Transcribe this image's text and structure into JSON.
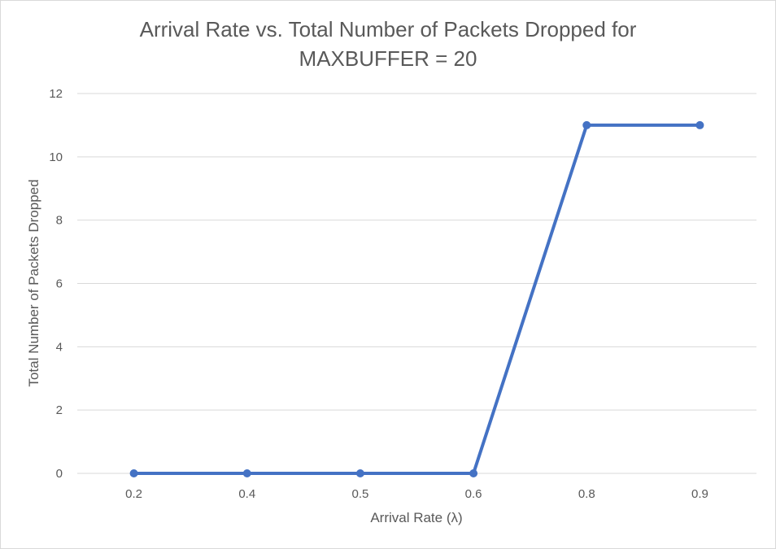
{
  "chart_data": {
    "type": "line",
    "title_line1": "Arrival Rate vs. Total Number of Packets Dropped for",
    "title_line2": "MAXBUFFER = 20",
    "xlabel": "Arrival Rate (λ)",
    "ylabel": "Total Number of Packets Dropped",
    "categories": [
      "0.2",
      "0.4",
      "0.5",
      "0.6",
      "0.8",
      "0.9"
    ],
    "values": [
      0,
      0,
      0,
      0,
      11,
      11
    ],
    "ylim": [
      0,
      12
    ],
    "yticks": [
      "0",
      "2",
      "4",
      "6",
      "8",
      "10",
      "12"
    ],
    "grid": "horizontal",
    "legend": "none",
    "color": "#4472c4"
  }
}
